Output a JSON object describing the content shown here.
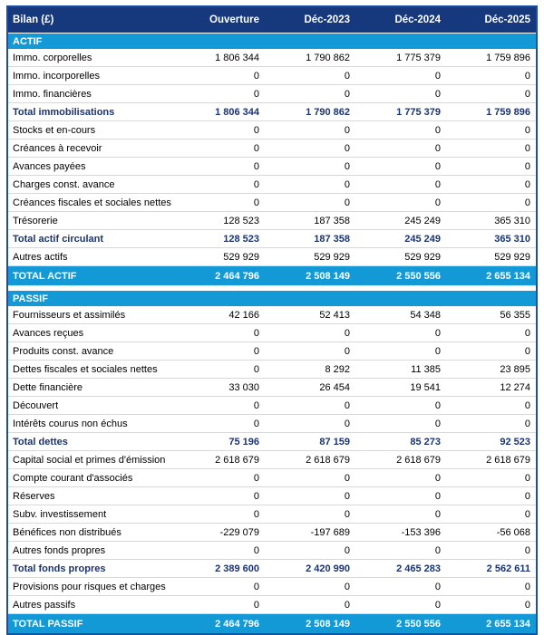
{
  "table": {
    "title": "Bilan (£)",
    "columns": [
      "Bilan (£)",
      "Ouverture",
      "Déc-2023",
      "Déc-2024",
      "Déc-2025"
    ],
    "colors": {
      "header_bg": "#16387c",
      "band_bg": "#1299d6",
      "subtotal_text": "#1b3470",
      "outer_border": "#1f4ea0",
      "row_separator": "#d8d8d8"
    },
    "sections": [
      {
        "title": "ACTIF",
        "rows": [
          {
            "label": "Immo. corporelles",
            "values": [
              "1 806 344",
              "1 790 862",
              "1 775 379",
              "1 759 896"
            ],
            "bold": false
          },
          {
            "label": "Immo. incorporelles",
            "values": [
              "0",
              "0",
              "0",
              "0"
            ],
            "bold": false
          },
          {
            "label": "Immo. financières",
            "values": [
              "0",
              "0",
              "0",
              "0"
            ],
            "bold": false
          },
          {
            "label": "Total immobilisations",
            "values": [
              "1 806 344",
              "1 790 862",
              "1 775 379",
              "1 759 896"
            ],
            "bold": true
          },
          {
            "label": "Stocks et en-cours",
            "values": [
              "0",
              "0",
              "0",
              "0"
            ],
            "bold": false
          },
          {
            "label": "Créances à recevoir",
            "values": [
              "0",
              "0",
              "0",
              "0"
            ],
            "bold": false
          },
          {
            "label": "Avances payées",
            "values": [
              "0",
              "0",
              "0",
              "0"
            ],
            "bold": false
          },
          {
            "label": "Charges const. avance",
            "values": [
              "0",
              "0",
              "0",
              "0"
            ],
            "bold": false
          },
          {
            "label": "Créances fiscales et sociales nettes",
            "values": [
              "0",
              "0",
              "0",
              "0"
            ],
            "bold": false
          },
          {
            "label": "Trésorerie",
            "values": [
              "128 523",
              "187 358",
              "245 249",
              "365 310"
            ],
            "bold": false
          },
          {
            "label": "Total actif circulant",
            "values": [
              "128 523",
              "187 358",
              "245 249",
              "365 310"
            ],
            "bold": true
          },
          {
            "label": "Autres actifs",
            "values": [
              "529 929",
              "529 929",
              "529 929",
              "529 929"
            ],
            "bold": false
          }
        ],
        "total": {
          "label": "TOTAL ACTIF",
          "values": [
            "2 464 796",
            "2 508 149",
            "2 550 556",
            "2 655 134"
          ]
        }
      },
      {
        "title": "PASSIF",
        "rows": [
          {
            "label": "Fournisseurs et assimilés",
            "values": [
              "42 166",
              "52 413",
              "54 348",
              "56 355"
            ],
            "bold": false
          },
          {
            "label": "Avances reçues",
            "values": [
              "0",
              "0",
              "0",
              "0"
            ],
            "bold": false
          },
          {
            "label": "Produits const. avance",
            "values": [
              "0",
              "0",
              "0",
              "0"
            ],
            "bold": false
          },
          {
            "label": "Dettes fiscales et sociales nettes",
            "values": [
              "0",
              "8 292",
              "11 385",
              "23 895"
            ],
            "bold": false
          },
          {
            "label": "Dette financière",
            "values": [
              "33 030",
              "26 454",
              "19 541",
              "12 274"
            ],
            "bold": false
          },
          {
            "label": "Découvert",
            "values": [
              "0",
              "0",
              "0",
              "0"
            ],
            "bold": false
          },
          {
            "label": "Intérêts courus non échus",
            "values": [
              "0",
              "0",
              "0",
              "0"
            ],
            "bold": false
          },
          {
            "label": "Total dettes",
            "values": [
              "75 196",
              "87 159",
              "85 273",
              "92 523"
            ],
            "bold": true
          },
          {
            "label": "Capital social et primes d'émission",
            "values": [
              "2 618 679",
              "2 618 679",
              "2 618 679",
              "2 618 679"
            ],
            "bold": false
          },
          {
            "label": "Compte courant d'associés",
            "values": [
              "0",
              "0",
              "0",
              "0"
            ],
            "bold": false
          },
          {
            "label": "Réserves",
            "values": [
              "0",
              "0",
              "0",
              "0"
            ],
            "bold": false
          },
          {
            "label": "Subv. investissement",
            "values": [
              "0",
              "0",
              "0",
              "0"
            ],
            "bold": false
          },
          {
            "label": "Bénéfices non distribués",
            "values": [
              "-229 079",
              "-197 689",
              "-153 396",
              "-56 068"
            ],
            "bold": false
          },
          {
            "label": "Autres fonds propres",
            "values": [
              "0",
              "0",
              "0",
              "0"
            ],
            "bold": false
          },
          {
            "label": "Total fonds propres",
            "values": [
              "2 389 600",
              "2 420 990",
              "2 465 283",
              "2 562 611"
            ],
            "bold": true
          },
          {
            "label": "Provisions pour risques et charges",
            "values": [
              "0",
              "0",
              "0",
              "0"
            ],
            "bold": false
          },
          {
            "label": "Autres passifs",
            "values": [
              "0",
              "0",
              "0",
              "0"
            ],
            "bold": false
          }
        ],
        "total": {
          "label": "TOTAL PASSIF",
          "values": [
            "2 464 796",
            "2 508 149",
            "2 550 556",
            "2 655 134"
          ]
        }
      }
    ]
  }
}
